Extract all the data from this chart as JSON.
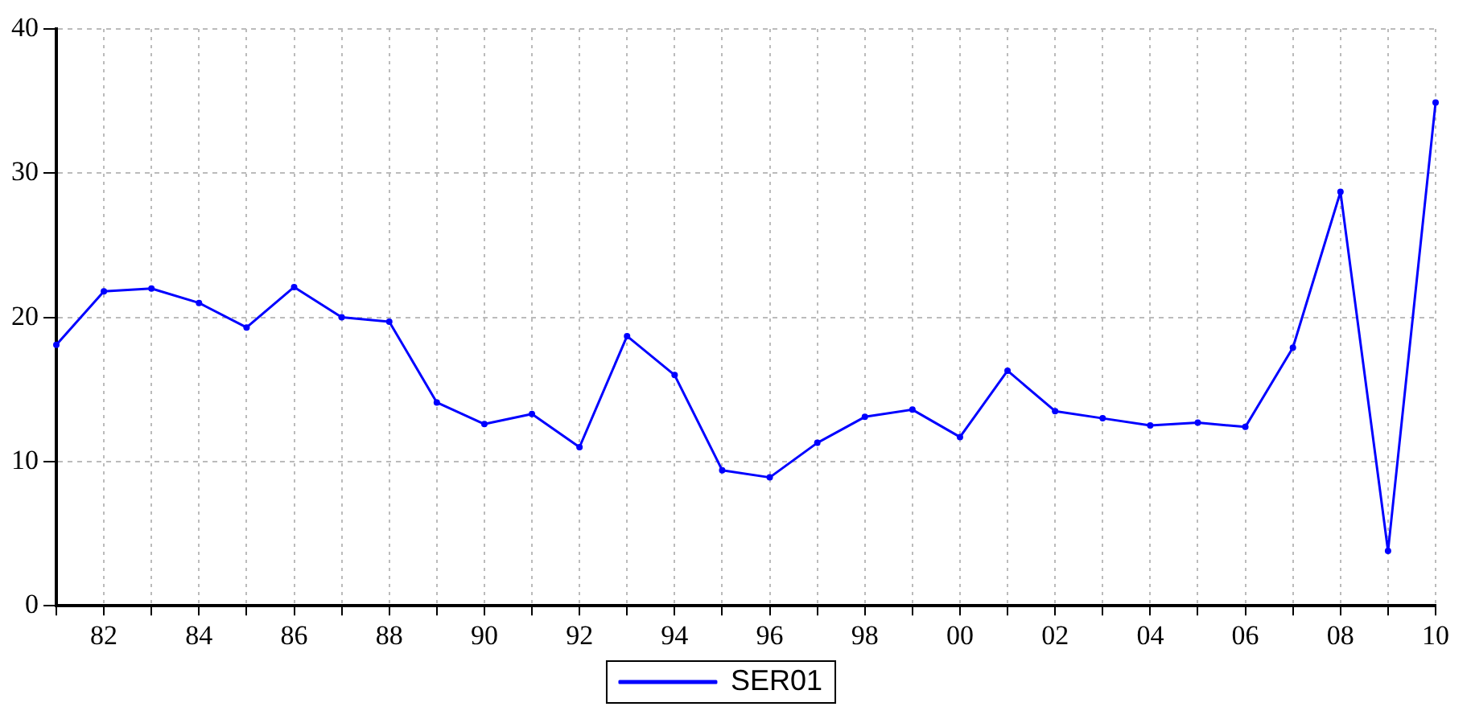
{
  "chart_data": {
    "type": "line",
    "categories": [
      null,
      "82",
      null,
      "84",
      null,
      "86",
      null,
      "88",
      null,
      "90",
      null,
      "92",
      null,
      "94",
      null,
      "96",
      null,
      "98",
      null,
      "00",
      null,
      "02",
      null,
      "04",
      null,
      "06",
      null,
      "08",
      null,
      "10"
    ],
    "series": [
      {
        "name": "SER01",
        "color": "#0000ff",
        "values": [
          18.1,
          21.8,
          22.0,
          21.0,
          19.3,
          22.1,
          20.0,
          19.7,
          14.1,
          12.6,
          13.3,
          11.0,
          18.7,
          16.0,
          9.4,
          8.9,
          11.3,
          13.1,
          13.6,
          11.7,
          16.3,
          13.5,
          13.0,
          12.5,
          12.7,
          12.4,
          17.9,
          28.7,
          3.8,
          34.9
        ]
      }
    ],
    "ylim": [
      0,
      40
    ],
    "yticks": [
      0,
      10,
      20,
      30,
      40
    ],
    "grid": true,
    "legend": "bottom",
    "marker": "circle",
    "line_style": "solid"
  }
}
